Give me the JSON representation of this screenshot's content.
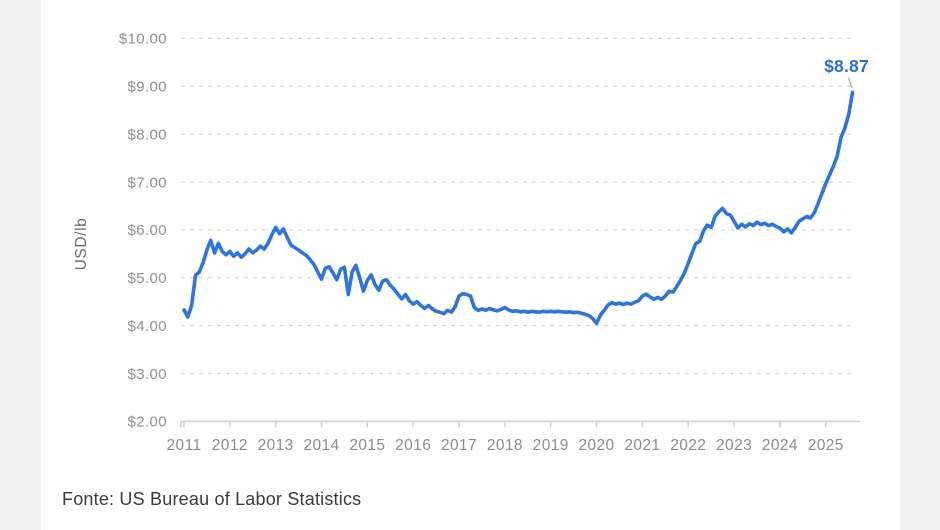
{
  "page": {
    "background": "#ffffff",
    "side_panel_color": "#f0f0f1",
    "source_note": "Fonte: US Bureau of Labor Statistics"
  },
  "chart_data": {
    "type": "line",
    "title": "",
    "xlabel": "",
    "ylabel": "USD/lb",
    "ylim": [
      2,
      10
    ],
    "grid": "horizontal dashed",
    "legend": "none",
    "colors": {
      "line": "#2e74dd",
      "annotation": "#2b6fd6",
      "gridline": "#d6d6d6",
      "axis": "#cfcfcf",
      "tick_text": "#8f8f8f",
      "connector": "#b9b9b9"
    },
    "y_ticks": [
      {
        "value": 10,
        "label": "$10.00"
      },
      {
        "value": 9,
        "label": "$9.00"
      },
      {
        "value": 8,
        "label": "$8.00"
      },
      {
        "value": 7,
        "label": "$7.00"
      },
      {
        "value": 6,
        "label": "$6.00"
      },
      {
        "value": 5,
        "label": "$5.00"
      },
      {
        "value": 4,
        "label": "$4.00"
      },
      {
        "value": 3,
        "label": "$3.00"
      },
      {
        "value": 2,
        "label": "$2.00"
      }
    ],
    "x_ticks": [
      "2011",
      "2012",
      "2013",
      "2014",
      "2015",
      "2016",
      "2017",
      "2018",
      "2019",
      "2020",
      "2021",
      "2022",
      "2023",
      "2024",
      "2025"
    ],
    "end_annotation": "$8.87",
    "x_start": {
      "year": 2011,
      "month": 1
    },
    "frequency": "monthly",
    "series": [
      {
        "name": "",
        "last_value_label": "$8.87",
        "values": [
          4.33,
          4.18,
          4.42,
          5.05,
          5.12,
          5.32,
          5.58,
          5.78,
          5.52,
          5.72,
          5.55,
          5.48,
          5.55,
          5.45,
          5.52,
          5.43,
          5.5,
          5.6,
          5.52,
          5.58,
          5.66,
          5.6,
          5.72,
          5.9,
          6.05,
          5.92,
          6.02,
          5.85,
          5.68,
          5.63,
          5.58,
          5.52,
          5.47,
          5.38,
          5.28,
          5.12,
          4.97,
          5.2,
          5.23,
          5.1,
          4.96,
          5.18,
          5.22,
          4.65,
          5.12,
          5.26,
          5.0,
          4.72,
          4.95,
          5.06,
          4.86,
          4.74,
          4.93,
          4.96,
          4.84,
          4.76,
          4.66,
          4.56,
          4.65,
          4.52,
          4.45,
          4.5,
          4.42,
          4.36,
          4.42,
          4.35,
          4.3,
          4.28,
          4.25,
          4.32,
          4.28,
          4.4,
          4.62,
          4.67,
          4.65,
          4.62,
          4.38,
          4.32,
          4.35,
          4.32,
          4.36,
          4.33,
          4.31,
          4.34,
          4.38,
          4.33,
          4.3,
          4.31,
          4.29,
          4.3,
          4.28,
          4.3,
          4.29,
          4.28,
          4.3,
          4.29,
          4.3,
          4.29,
          4.3,
          4.29,
          4.28,
          4.29,
          4.27,
          4.28,
          4.26,
          4.24,
          4.21,
          4.15,
          4.05,
          4.22,
          4.32,
          4.43,
          4.48,
          4.45,
          4.47,
          4.44,
          4.47,
          4.45,
          4.49,
          4.52,
          4.62,
          4.66,
          4.6,
          4.55,
          4.59,
          4.55,
          4.62,
          4.72,
          4.7,
          4.82,
          4.95,
          5.1,
          5.3,
          5.52,
          5.72,
          5.76,
          5.98,
          6.1,
          6.05,
          6.28,
          6.38,
          6.45,
          6.34,
          6.31,
          6.18,
          6.04,
          6.12,
          6.06,
          6.13,
          6.09,
          6.16,
          6.11,
          6.14,
          6.09,
          6.12,
          6.07,
          6.04,
          5.96,
          6.02,
          5.94,
          6.05,
          6.18,
          6.23,
          6.28,
          6.25,
          6.36,
          6.55,
          6.76,
          6.97,
          7.15,
          7.33,
          7.54,
          7.93,
          8.13,
          8.41,
          8.87
        ]
      }
    ]
  }
}
